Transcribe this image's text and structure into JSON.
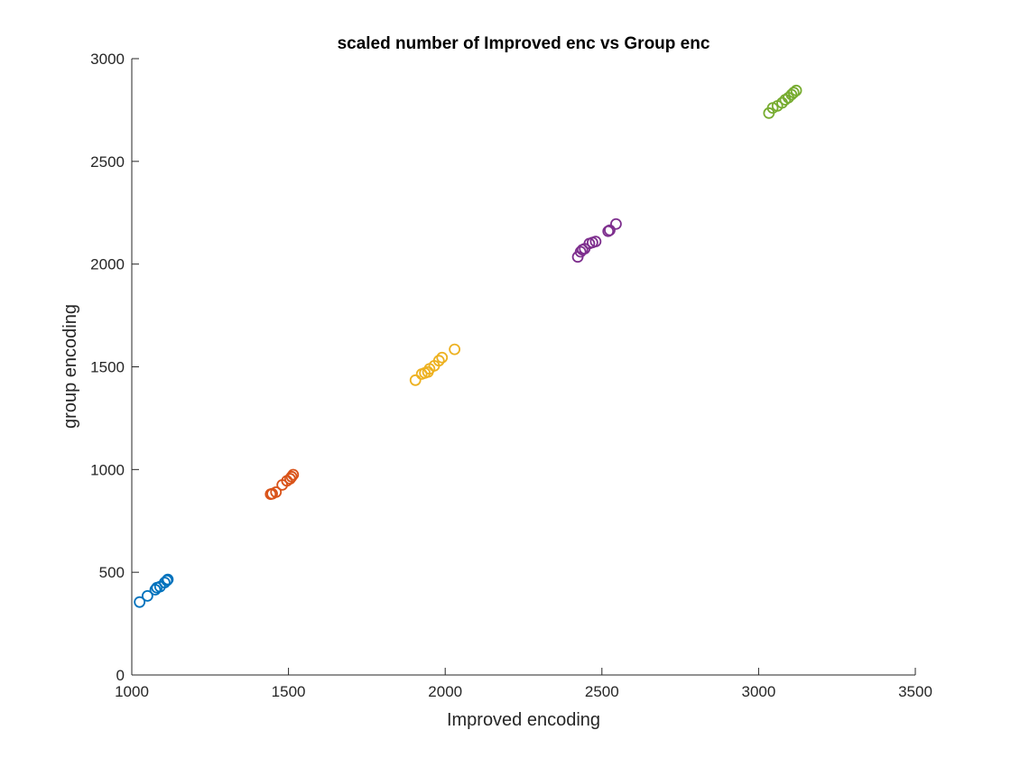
{
  "chart_data": {
    "type": "scatter",
    "title": "scaled number of Improved enc vs Group enc",
    "xlabel": "Improved encoding",
    "ylabel": "group encoding",
    "xlim": [
      1000,
      3500
    ],
    "ylim": [
      0,
      3000
    ],
    "xticks": [
      "1000",
      "1500",
      "2000",
      "2500",
      "3000",
      "3500"
    ],
    "yticks": [
      "0",
      "500",
      "1000",
      "1500",
      "2000",
      "2500",
      "3000"
    ],
    "grid": false,
    "series": [
      {
        "color": "#0072BD",
        "points": [
          [
            1025,
            355
          ],
          [
            1050,
            385
          ],
          [
            1075,
            415
          ],
          [
            1080,
            425
          ],
          [
            1090,
            430
          ],
          [
            1105,
            450
          ],
          [
            1112,
            460
          ],
          [
            1115,
            465
          ]
        ]
      },
      {
        "color": "#D95319",
        "points": [
          [
            1443,
            880
          ],
          [
            1448,
            882
          ],
          [
            1460,
            890
          ],
          [
            1480,
            925
          ],
          [
            1495,
            945
          ],
          [
            1505,
            955
          ],
          [
            1510,
            965
          ],
          [
            1515,
            975
          ]
        ]
      },
      {
        "color": "#EDB120",
        "points": [
          [
            1905,
            1435
          ],
          [
            1925,
            1465
          ],
          [
            1935,
            1470
          ],
          [
            1945,
            1475
          ],
          [
            1950,
            1490
          ],
          [
            1965,
            1505
          ],
          [
            1980,
            1530
          ],
          [
            1990,
            1545
          ],
          [
            2030,
            1585
          ]
        ]
      },
      {
        "color": "#7E2F8E",
        "points": [
          [
            2423,
            2035
          ],
          [
            2432,
            2060
          ],
          [
            2438,
            2070
          ],
          [
            2445,
            2075
          ],
          [
            2460,
            2100
          ],
          [
            2470,
            2105
          ],
          [
            2480,
            2110
          ],
          [
            2520,
            2160
          ],
          [
            2525,
            2165
          ],
          [
            2545,
            2195
          ]
        ]
      },
      {
        "color": "#77AC30",
        "points": [
          [
            3033,
            2735
          ],
          [
            3045,
            2760
          ],
          [
            3060,
            2770
          ],
          [
            3075,
            2785
          ],
          [
            3085,
            2800
          ],
          [
            3095,
            2810
          ],
          [
            3105,
            2825
          ],
          [
            3112,
            2835
          ],
          [
            3120,
            2845
          ]
        ]
      }
    ]
  }
}
